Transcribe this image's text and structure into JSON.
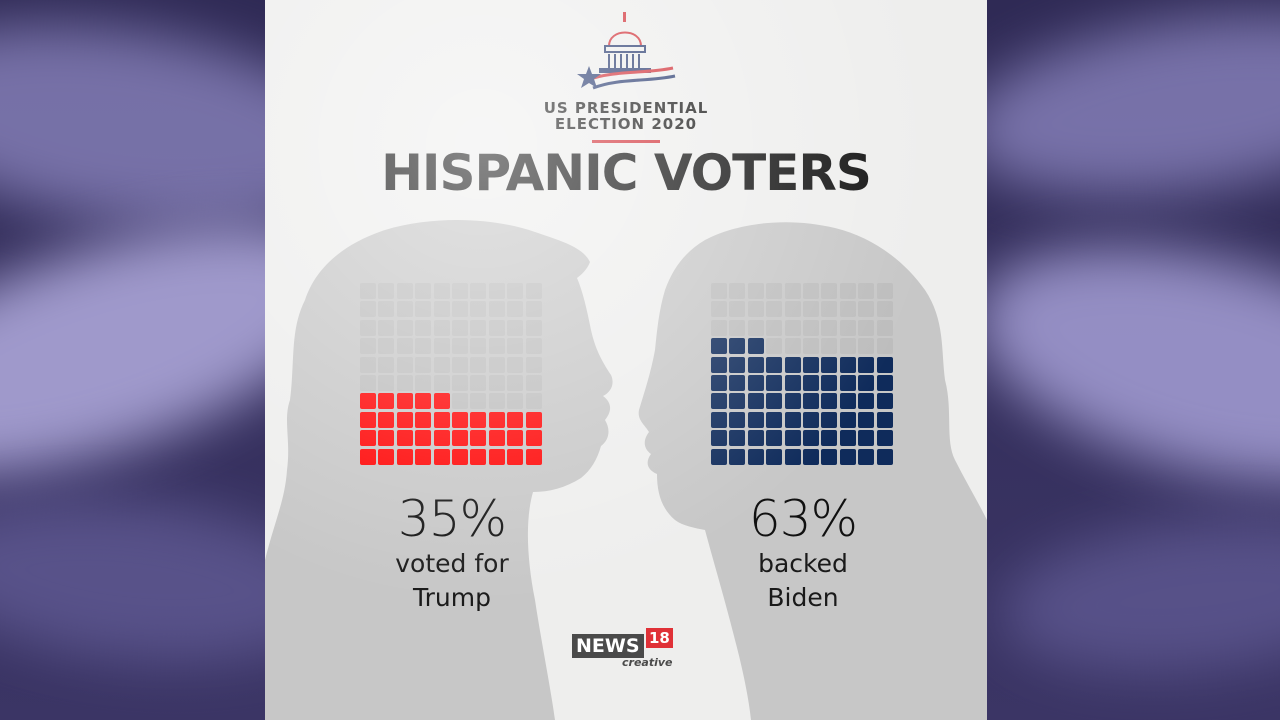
{
  "header": {
    "election_title": "US PRESIDENTIAL\nELECTION 2020",
    "headline": "HISPANIC VOTERS"
  },
  "chart_data": {
    "type": "waffle",
    "title": "HISPANIC VOTERS",
    "grid": {
      "rows": 10,
      "cols": 10
    },
    "series": [
      {
        "name": "Trump",
        "value": 35,
        "value_label": "35%",
        "caption_line1": "voted for",
        "caption_line2": "Trump",
        "color": "#ff0000"
      },
      {
        "name": "Biden",
        "value": 63,
        "value_label": "63%",
        "caption_line1": "backed",
        "caption_line2": "Biden",
        "color": "#0f2b5b"
      }
    ],
    "empty_color": "#bdbdbd"
  },
  "footer": {
    "brand_name": "NEWS",
    "brand_number": "18",
    "brand_sub": "creative"
  },
  "colors": {
    "silhouette": "#c7c7c7",
    "accent_red": "#d2343b"
  }
}
